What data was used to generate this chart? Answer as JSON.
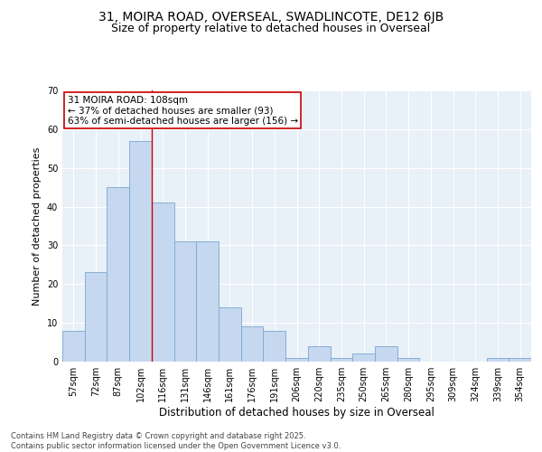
{
  "title": "31, MOIRA ROAD, OVERSEAL, SWADLINCOTE, DE12 6JB",
  "subtitle": "Size of property relative to detached houses in Overseal",
  "xlabel": "Distribution of detached houses by size in Overseal",
  "ylabel": "Number of detached properties",
  "categories": [
    "57sqm",
    "72sqm",
    "87sqm",
    "102sqm",
    "116sqm",
    "131sqm",
    "146sqm",
    "161sqm",
    "176sqm",
    "191sqm",
    "206sqm",
    "220sqm",
    "235sqm",
    "250sqm",
    "265sqm",
    "280sqm",
    "295sqm",
    "309sqm",
    "324sqm",
    "339sqm",
    "354sqm"
  ],
  "values": [
    8,
    23,
    45,
    57,
    41,
    31,
    31,
    14,
    9,
    8,
    1,
    4,
    1,
    2,
    4,
    1,
    0,
    0,
    0,
    1,
    1
  ],
  "bar_color": "#c5d8f0",
  "bar_edge_color": "#7ba7d0",
  "bg_color": "#e8f0f8",
  "grid_color": "#ffffff",
  "annotation_text": "31 MOIRA ROAD: 108sqm\n← 37% of detached houses are smaller (93)\n63% of semi-detached houses are larger (156) →",
  "vline_x": 3.5,
  "vline_color": "#cc0000",
  "ylim": [
    0,
    70
  ],
  "yticks": [
    0,
    10,
    20,
    30,
    40,
    50,
    60,
    70
  ],
  "footer_text": "Contains HM Land Registry data © Crown copyright and database right 2025.\nContains public sector information licensed under the Open Government Licence v3.0.",
  "title_fontsize": 10,
  "subtitle_fontsize": 9,
  "axis_label_fontsize": 8,
  "tick_fontsize": 7,
  "annotation_fontsize": 7.5,
  "footer_fontsize": 6
}
